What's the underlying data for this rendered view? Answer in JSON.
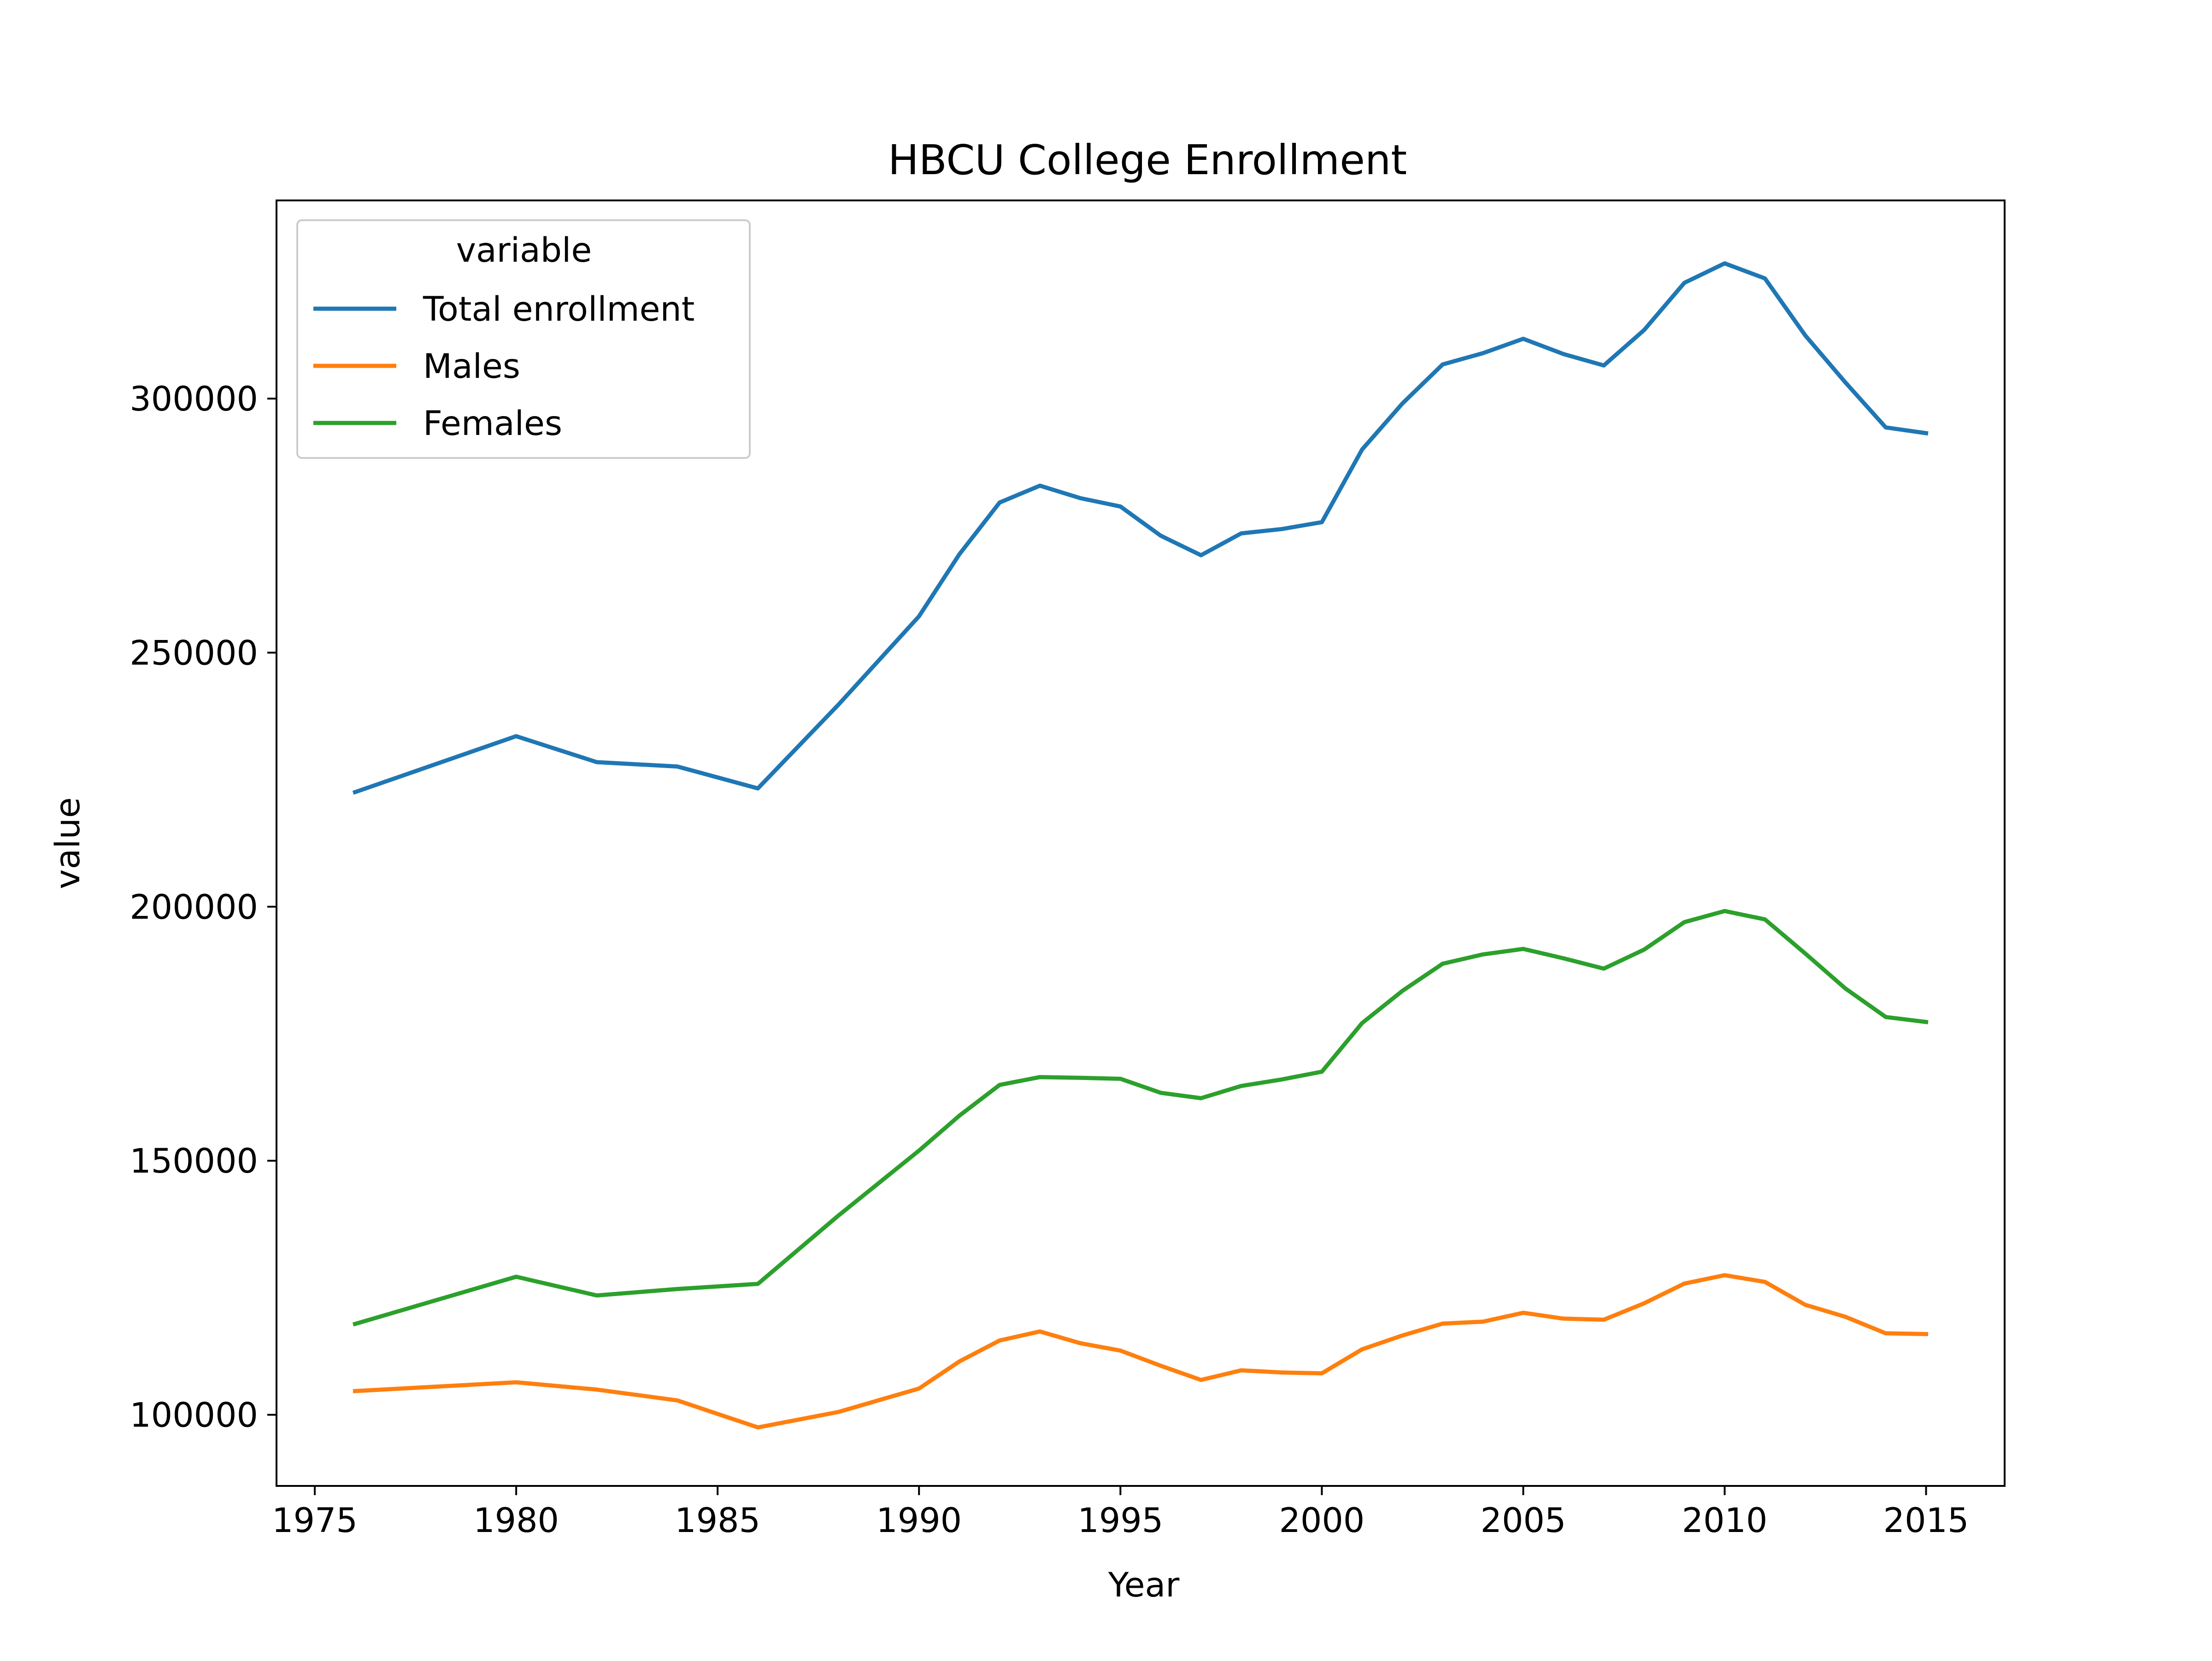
{
  "chart_data": {
    "type": "line",
    "title": "HBCU College Enrollment",
    "xlabel": "Year",
    "ylabel": "value",
    "xlim": [
      1974.05,
      1016.95
    ],
    "ylim": [
      86000,
      339000
    ],
    "x_ticks": [
      1975,
      1980,
      1985,
      1990,
      1995,
      2000,
      2005,
      2010,
      2015
    ],
    "y_ticks": [
      100000,
      150000,
      200000,
      250000,
      300000
    ],
    "grid": false,
    "legend": {
      "title": "variable",
      "position": "top-left"
    },
    "x": [
      1976,
      1980,
      1982,
      1984,
      1986,
      1988,
      1990,
      1991,
      1992,
      1993,
      1994,
      1995,
      1996,
      1997,
      1998,
      1999,
      2000,
      2001,
      2002,
      2003,
      2004,
      2005,
      2006,
      2007,
      2008,
      2009,
      2010,
      2011,
      2012,
      2013,
      2014,
      2015
    ],
    "series": [
      {
        "name": "Total enrollment",
        "color": "#1f77b4",
        "values": [
          222550,
          233560,
          228450,
          227590,
          223280,
          239760,
          257150,
          269330,
          279540,
          282860,
          280410,
          278760,
          273020,
          269170,
          273470,
          274320,
          275680,
          289990,
          299040,
          306730,
          308940,
          311770,
          308770,
          306520,
          313490,
          322790,
          326610,
          323650,
          312440,
          303150,
          294320,
          293200
        ]
      },
      {
        "name": "Males",
        "color": "#ff7f0e",
        "values": [
          104670,
          106390,
          104960,
          102830,
          97520,
          100550,
          105160,
          110480,
          114620,
          116400,
          114090,
          112630,
          109650,
          106860,
          108750,
          108330,
          108160,
          112890,
          115610,
          117950,
          118330,
          120080,
          118930,
          118710,
          121940,
          125830,
          127470,
          126150,
          121650,
          119270,
          116030,
          115890
        ]
      },
      {
        "name": "Females",
        "color": "#2ca02c",
        "values": [
          117880,
          127170,
          123490,
          124760,
          125760,
          139210,
          151990,
          158850,
          164920,
          166460,
          166320,
          166130,
          163370,
          162310,
          164720,
          165990,
          167520,
          177100,
          183430,
          188780,
          190610,
          191690,
          189840,
          187810,
          191550,
          196960,
          199140,
          197500,
          190790,
          183880,
          178290,
          177310
        ]
      }
    ]
  }
}
